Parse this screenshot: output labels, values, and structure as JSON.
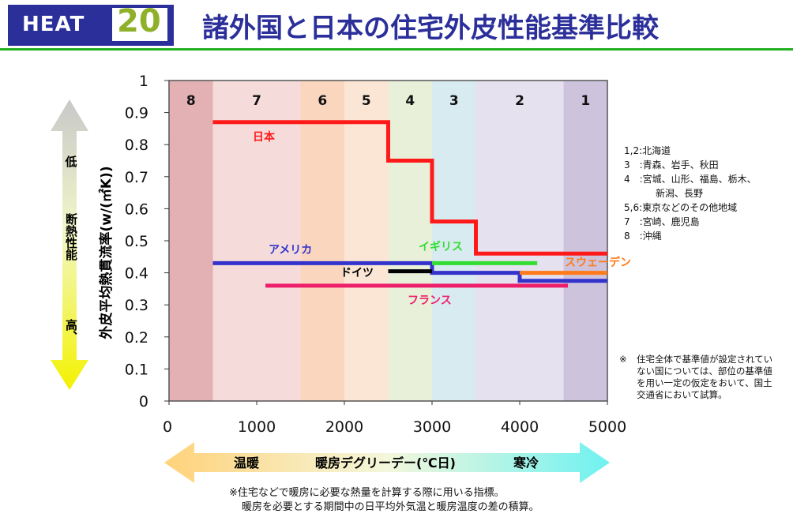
{
  "header": {
    "heat_label": "HEAT",
    "heat_number": "20",
    "title": "諸外国と日本の住宅外皮性能基準比較"
  },
  "colors": {
    "header_blue": "#2b2f9a",
    "heat_number": "#8fb12a",
    "rule_green": "#22b022"
  },
  "left_arrow": {
    "label_top": "低",
    "label_middle": "断熱性能",
    "label_bottom": "高、"
  },
  "bottom_arrow": {
    "label_left": "温暖",
    "label_center": "暖房デグリーデー(℃日)",
    "label_right": "寒冷"
  },
  "chart_data": {
    "type": "line",
    "xlabel": "暖房デグリーデー(℃日)",
    "ylabel": "外皮平均熱貫流率(w/(㎡K))",
    "xlim": [
      0,
      5000
    ],
    "ylim": [
      0,
      1
    ],
    "x_ticks": [
      "0",
      "1000",
      "2000",
      "3000",
      "4000",
      "5000"
    ],
    "y_ticks": [
      "0",
      "0.1",
      "0.2",
      "0.3",
      "0.4",
      "0.5",
      "0.6",
      "0.7",
      "0.8",
      "0.9",
      "1"
    ],
    "regions": [
      {
        "label": "8",
        "x": [
          0,
          500
        ],
        "color": "#e3b1b4"
      },
      {
        "label": "7",
        "x": [
          500,
          1500
        ],
        "color": "#f5dcdb"
      },
      {
        "label": "6",
        "x": [
          1500,
          2000
        ],
        "color": "#fbd6bf"
      },
      {
        "label": "5",
        "x": [
          2000,
          2500
        ],
        "color": "#fbe6d6"
      },
      {
        "label": "4",
        "x": [
          2500,
          3000
        ],
        "color": "#e8f0d9"
      },
      {
        "label": "3",
        "x": [
          3000,
          3500
        ],
        "color": "#d8ebf0"
      },
      {
        "label": "2",
        "x": [
          3500,
          4500
        ],
        "color": "#e6e1ef"
      },
      {
        "label": "1",
        "x": [
          4500,
          5000
        ],
        "color": "#cdc3dc"
      }
    ],
    "series": [
      {
        "name": "日本",
        "color": "#ff1a1a",
        "points": [
          [
            500,
            0.87
          ],
          [
            2500,
            0.87
          ],
          [
            2500,
            0.75
          ],
          [
            3000,
            0.75
          ],
          [
            3000,
            0.56
          ],
          [
            3500,
            0.56
          ],
          [
            3500,
            0.46
          ],
          [
            5000,
            0.46
          ]
        ]
      },
      {
        "name": "アメリカ",
        "color": "#3333cc",
        "points": [
          [
            500,
            0.43
          ],
          [
            3000,
            0.43
          ],
          [
            3000,
            0.4
          ],
          [
            4000,
            0.4
          ],
          [
            4000,
            0.375
          ],
          [
            5000,
            0.375
          ]
        ]
      },
      {
        "name": "イギリス",
        "color": "#33dd33",
        "points": [
          [
            3000,
            0.43
          ],
          [
            4200,
            0.43
          ]
        ]
      },
      {
        "name": "ドイツ",
        "color": "#000000",
        "points": [
          [
            2500,
            0.405
          ],
          [
            3000,
            0.405
          ]
        ]
      },
      {
        "name": "フランス",
        "color": "#ee1f6a",
        "points": [
          [
            1100,
            0.36
          ],
          [
            4550,
            0.36
          ]
        ]
      },
      {
        "name": "スウェーデン",
        "color": "#ff7a1a",
        "points": [
          [
            4000,
            0.4
          ],
          [
            5000,
            0.4
          ]
        ]
      }
    ]
  },
  "region_legend": [
    "1,2:北海道",
    "3　:青森、岩手、秋田",
    "4　:宮城、山形、福島、栃木、",
    "新潟、長野",
    "5,6:東京などのその他地域",
    "7　:宮崎、鹿児島",
    "8　:沖縄"
  ],
  "aside_note": {
    "mark": "※",
    "text": "住宅全体で基準値が設定されていない国については、部位の基準値を用い一定の仮定をおいて、国土交通省において試算。"
  },
  "footnote": {
    "line1": "※住宅などで暖房に必要な熱量を計算する際に用いる指標。",
    "line2": "暖房を必要とする期間中の日平均外気温と暖房温度の差の積算。"
  }
}
